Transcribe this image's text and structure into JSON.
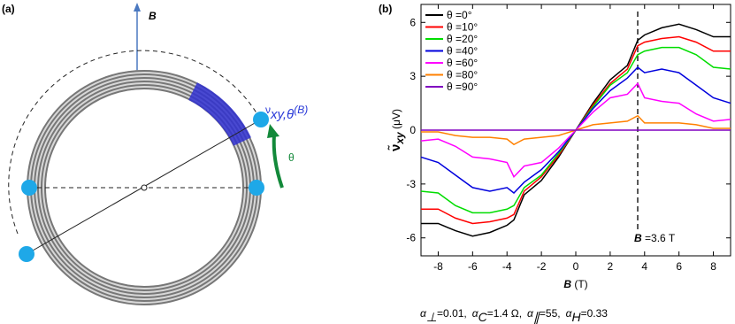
{
  "panel_a": {
    "label": "(a)",
    "field_label": "B",
    "signal_label": {
      "symbol": "ν",
      "sub": "xy,θ",
      "arg": "(B)"
    },
    "angle_label": "θ"
  },
  "chart_data": {
    "type": "line",
    "panel_label": "(b)",
    "x_label": {
      "symbol": "B",
      "unit": " (T)"
    },
    "y_label": {
      "symbol": "ν̃",
      "sub": "xy",
      "unit": " (μV)"
    },
    "x": [
      -9,
      -8,
      -7,
      -6,
      -5,
      -4,
      -3.6,
      -3,
      -2,
      -1,
      0,
      1,
      2,
      3,
      3.6,
      4,
      5,
      6,
      7,
      8,
      9
    ],
    "series": [
      {
        "name": "θ =0°",
        "color": "#000000",
        "values": [
          -5.2,
          -5.2,
          -5.6,
          -5.9,
          -5.7,
          -5.3,
          -5.0,
          -3.6,
          -2.8,
          -1.5,
          0,
          1.5,
          2.8,
          3.6,
          5.0,
          5.3,
          5.7,
          5.9,
          5.6,
          5.2,
          5.2
        ]
      },
      {
        "name": "θ =10°",
        "color": "#ff0000",
        "values": [
          -4.4,
          -4.4,
          -4.9,
          -5.2,
          -5.1,
          -4.9,
          -4.7,
          -3.4,
          -2.6,
          -1.4,
          0,
          1.4,
          2.6,
          3.4,
          4.7,
          4.9,
          5.1,
          5.2,
          4.9,
          4.4,
          4.4
        ]
      },
      {
        "name": "θ =20°",
        "color": "#00dd00",
        "values": [
          -3.4,
          -3.5,
          -4.2,
          -4.6,
          -4.6,
          -4.4,
          -4.2,
          -3.2,
          -2.5,
          -1.3,
          0,
          1.3,
          2.5,
          3.2,
          4.2,
          4.4,
          4.6,
          4.6,
          4.2,
          3.5,
          3.4
        ]
      },
      {
        "name": "θ =40°",
        "color": "#0000dd",
        "values": [
          -1.5,
          -1.8,
          -2.5,
          -3.2,
          -3.4,
          -3.2,
          -3.5,
          -2.9,
          -2.2,
          -1.2,
          0,
          1.2,
          2.2,
          2.9,
          3.5,
          3.2,
          3.4,
          3.2,
          2.5,
          1.8,
          1.5
        ]
      },
      {
        "name": "θ =60°",
        "color": "#ff00ff",
        "values": [
          -0.6,
          -0.5,
          -0.9,
          -1.5,
          -1.6,
          -1.8,
          -2.6,
          -2.0,
          -1.8,
          -1.0,
          0,
          1.0,
          1.8,
          2.0,
          2.6,
          1.8,
          1.6,
          1.5,
          0.9,
          0.5,
          0.6
        ]
      },
      {
        "name": "θ =80°",
        "color": "#ff8000",
        "values": [
          -0.1,
          -0.1,
          -0.3,
          -0.4,
          -0.4,
          -0.5,
          -0.8,
          -0.5,
          -0.4,
          -0.3,
          0,
          0.3,
          0.4,
          0.5,
          0.8,
          0.4,
          0.4,
          0.4,
          0.3,
          0.1,
          0.1
        ]
      },
      {
        "name": "θ =90°",
        "color": "#8000c0",
        "values": [
          0,
          0,
          0,
          0,
          0,
          0,
          0,
          0,
          0,
          0,
          0,
          0,
          0,
          0,
          0,
          0,
          0,
          0,
          0,
          0,
          0
        ]
      }
    ],
    "xlim": [
      -9,
      9
    ],
    "xticks": [
      -8,
      -6,
      -4,
      -2,
      0,
      2,
      4,
      6,
      8
    ],
    "ylim": [
      -7,
      7
    ],
    "yticks": [
      -6,
      -3,
      0,
      3,
      6
    ],
    "legend": "upper left",
    "marker": {
      "x": 3.6,
      "symbol": "B",
      "text": " =3.6 T"
    },
    "parameters": [
      {
        "symbol": "α",
        "sub": "⊥",
        "value": "=0.01,"
      },
      {
        "symbol": "α",
        "sub": "C",
        "value": "=1.4 Ω,"
      },
      {
        "symbol": "α",
        "sub": "∥",
        "value": "=55,"
      },
      {
        "symbol": "α",
        "sub": "H",
        "value": "=0.33"
      }
    ]
  }
}
